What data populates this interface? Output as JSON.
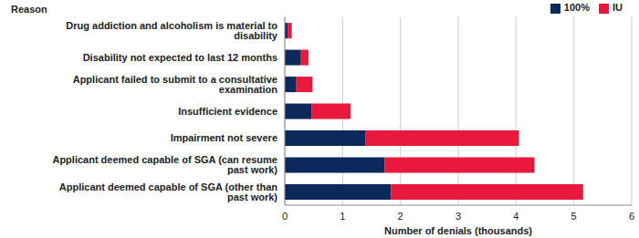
{
  "chart_data": {
    "type": "bar",
    "orientation": "horizontal",
    "stacked": true,
    "grid": true,
    "legend": "top-right",
    "y_label": "Reason",
    "x_label": "Number of denials (thousands)",
    "categories": [
      "Drug addiction and alcoholism is material to disability",
      "Disability not expected to last 12 months",
      "Applicant failed to submit to a consultative examination",
      "Insufficient evidence",
      "Impairment not severe",
      "Applicant deemed capable of SGA (can resume past work)",
      "Applicant deemed capable of SGA (other than past work)"
    ],
    "series": [
      {
        "name": "100%",
        "color": "#0b2a5b",
        "values": [
          0.05,
          0.28,
          0.2,
          0.46,
          1.4,
          1.73,
          1.84
        ]
      },
      {
        "name": "IU",
        "color": "#e8193c",
        "values": [
          0.07,
          0.13,
          0.28,
          0.68,
          2.65,
          2.59,
          3.32
        ]
      }
    ],
    "xlim": [
      0,
      6
    ],
    "xticks": [
      0,
      1,
      2,
      3,
      4,
      5,
      6
    ]
  }
}
